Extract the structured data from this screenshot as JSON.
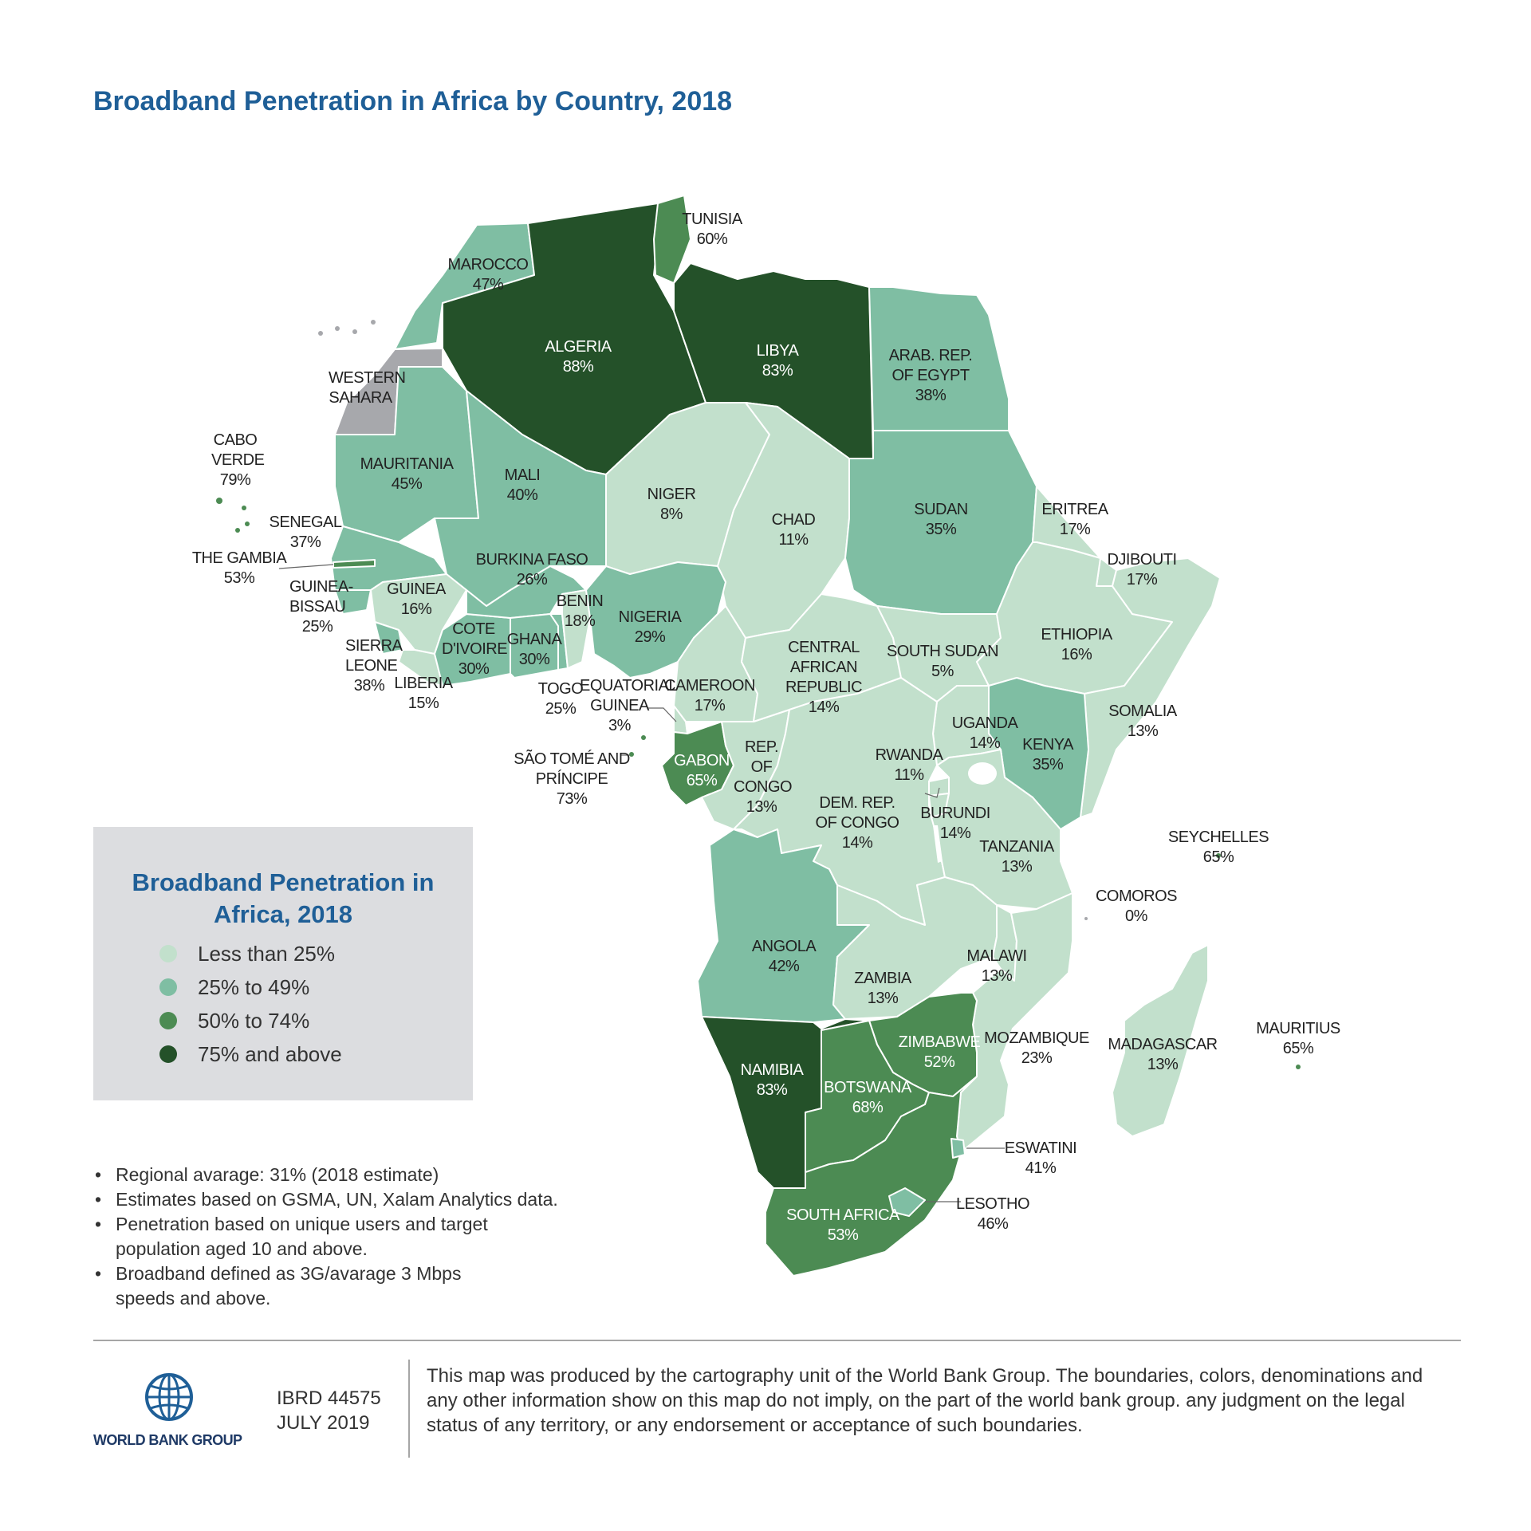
{
  "title": "Broadband Penetration in Africa by Country, 2018",
  "colors": {
    "ocean": "#ffffff",
    "border": "#ffffff",
    "no_data": "#a7a8ac",
    "less_than_25": "#c2e0cc",
    "25_to_49": "#7fbea3",
    "50_to_74": "#4c8b53",
    "75_and_above": "#245129"
  },
  "legend": {
    "title": "Broadband Penetration in Africa, 2018",
    "items": [
      {
        "label": "Less than 25%",
        "color": "#c2e0cc"
      },
      {
        "label": "25% to 49%",
        "color": "#7fbea3"
      },
      {
        "label": "50% to 74%",
        "color": "#4c8b53"
      },
      {
        "label": "75% and above",
        "color": "#245129"
      }
    ]
  },
  "countries": [
    {
      "name": "MAROCCO",
      "value": "47%"
    },
    {
      "name": "ALGERIA",
      "value": "88%"
    },
    {
      "name": "TUNISIA",
      "value": "60%"
    },
    {
      "name": "LIBYA",
      "value": "83%"
    },
    {
      "name": "ARAB. REP. OF EGYPT",
      "value": "38%"
    },
    {
      "name": "WESTERN SAHARA",
      "value": ""
    },
    {
      "name": "CABO VERDE",
      "value": "79%"
    },
    {
      "name": "MAURITANIA",
      "value": "45%"
    },
    {
      "name": "MALI",
      "value": "40%"
    },
    {
      "name": "NIGER",
      "value": "8%"
    },
    {
      "name": "CHAD",
      "value": "11%"
    },
    {
      "name": "SUDAN",
      "value": "35%"
    },
    {
      "name": "ERITREA",
      "value": "17%"
    },
    {
      "name": "DJIBOUTI",
      "value": "17%"
    },
    {
      "name": "SENEGAL",
      "value": "37%"
    },
    {
      "name": "THE GAMBIA",
      "value": "53%"
    },
    {
      "name": "GUINEA-BISSAU",
      "value": "25%"
    },
    {
      "name": "GUINEA",
      "value": "16%"
    },
    {
      "name": "BURKINA FASO",
      "value": "26%"
    },
    {
      "name": "BENIN",
      "value": "18%"
    },
    {
      "name": "NIGERIA",
      "value": "29%"
    },
    {
      "name": "ETHIOPIA",
      "value": "16%"
    },
    {
      "name": "SIERRA LEONE",
      "value": "38%"
    },
    {
      "name": "LIBERIA",
      "value": "15%"
    },
    {
      "name": "COTE D'IVOIRE",
      "value": "30%"
    },
    {
      "name": "GHANA",
      "value": "30%"
    },
    {
      "name": "TOGO",
      "value": "25%"
    },
    {
      "name": "EQUATORIAL GUINEA",
      "value": "3%"
    },
    {
      "name": "CAMEROON",
      "value": "17%"
    },
    {
      "name": "CENTRAL AFRICAN REPUBLIC",
      "value": "14%"
    },
    {
      "name": "SOUTH SUDAN",
      "value": "5%"
    },
    {
      "name": "SOMALIA",
      "value": "13%"
    },
    {
      "name": "UGANDA",
      "value": "14%"
    },
    {
      "name": "KENYA",
      "value": "35%"
    },
    {
      "name": "SÃO TOMÉ AND PRÍNCIPE",
      "value": "73%"
    },
    {
      "name": "GABON",
      "value": "65%"
    },
    {
      "name": "REP. OF CONGO",
      "value": "13%"
    },
    {
      "name": "RWANDA",
      "value": "11%"
    },
    {
      "name": "DEM. REP. OF CONGO",
      "value": "14%"
    },
    {
      "name": "BURUNDI",
      "value": "14%"
    },
    {
      "name": "TANZANIA",
      "value": "13%"
    },
    {
      "name": "SEYCHELLES",
      "value": "65%"
    },
    {
      "name": "COMOROS",
      "value": "0%"
    },
    {
      "name": "ANGOLA",
      "value": "42%"
    },
    {
      "name": "MALAWI",
      "value": "13%"
    },
    {
      "name": "ZAMBIA",
      "value": "13%"
    },
    {
      "name": "MOZAMBIQUE",
      "value": "23%"
    },
    {
      "name": "ZIMBABWE",
      "value": "52%"
    },
    {
      "name": "MADAGASCAR",
      "value": "13%"
    },
    {
      "name": "MAURITIUS",
      "value": "65%"
    },
    {
      "name": "NAMIBIA",
      "value": "83%"
    },
    {
      "name": "BOTSWANA",
      "value": "68%"
    },
    {
      "name": "ESWATINI",
      "value": "41%"
    },
    {
      "name": "SOUTH AFRICA",
      "value": "53%"
    },
    {
      "name": "LESOTHO",
      "value": "46%"
    }
  ],
  "notes": [
    "Regional avarage: 31% (2018 estimate)",
    "Estimates based on GSMA, UN, Xalam Analytics data.",
    "Penetration based on unique users and target population aged 10 and above.",
    "Broadband defined as 3G/avarage 3 Mbps speeds and above."
  ],
  "footer": {
    "logo_text": "WORLD BANK GROUP",
    "map_id": "IBRD 44575",
    "date": "JULY 2019",
    "disclaimer": "This map was produced by the cartography unit of the World Bank Group. The boundaries, colors, denominations and any other information show on this map do not imply, on the part of the world bank group. any judgment on the legal status of any territory, or any endorsement or acceptance of such boundaries."
  }
}
